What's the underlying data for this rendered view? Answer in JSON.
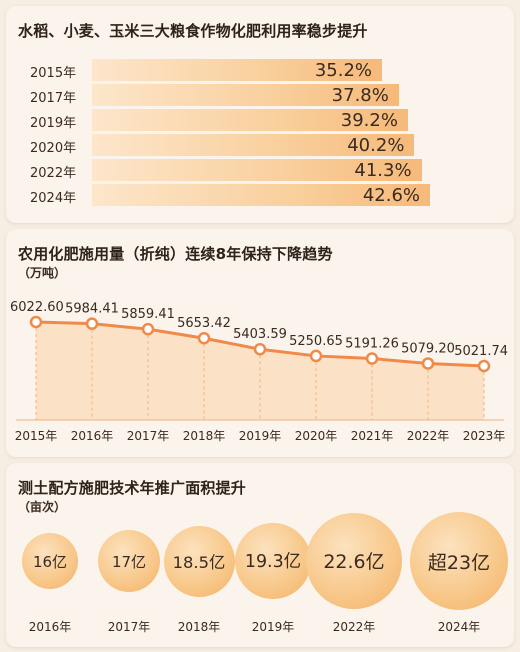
{
  "chart_data": [
    {
      "type": "bar",
      "title": "水稻、小麦、玉米三大粮食作物化肥利用率稳步提升",
      "categories": [
        "2015年",
        "2017年",
        "2019年",
        "2020年",
        "2022年",
        "2024年"
      ],
      "values": [
        35.2,
        37.8,
        39.2,
        40.2,
        41.3,
        42.6
      ],
      "value_labels": [
        "35.2%",
        "37.8%",
        "39.2%",
        "40.2%",
        "41.3%",
        "42.6%"
      ],
      "orientation": "horizontal",
      "colors": {
        "bar_light": "#fde6cb",
        "bar_dark": "#f6b979"
      }
    },
    {
      "type": "area",
      "title": "农用化肥施用量（折纯）连续8年保持下降趋势",
      "unit": "（万吨）",
      "categories": [
        "2015年",
        "2016年",
        "2017年",
        "2018年",
        "2019年",
        "2020年",
        "2021年",
        "2022年",
        "2023年"
      ],
      "values": [
        6022.6,
        5984.41,
        5859.41,
        5653.42,
        5403.59,
        5250.65,
        5191.26,
        5079.2,
        5021.74
      ],
      "value_labels": [
        "6022.60",
        "5984.41",
        "5859.41",
        "5653.42",
        "5403.59",
        "5250.65",
        "5191.26",
        "5079.20",
        "5021.74"
      ],
      "colors": {
        "line": "#f08a48",
        "area": "#fbe1c6"
      }
    },
    {
      "type": "bubble",
      "title": "测土配方施肥技术年推广面积提升",
      "unit": "（亩次）",
      "categories": [
        "2016年",
        "2017年",
        "2018年",
        "2019年",
        "2022年",
        "2024年"
      ],
      "values": [
        16,
        17,
        18.5,
        19.3,
        22.6,
        23
      ],
      "value_labels": [
        "16亿",
        "17亿",
        "18.5亿",
        "19.3亿",
        "22.6亿",
        "超23亿"
      ],
      "colors": {
        "bubble": "#f8c98c"
      }
    }
  ]
}
